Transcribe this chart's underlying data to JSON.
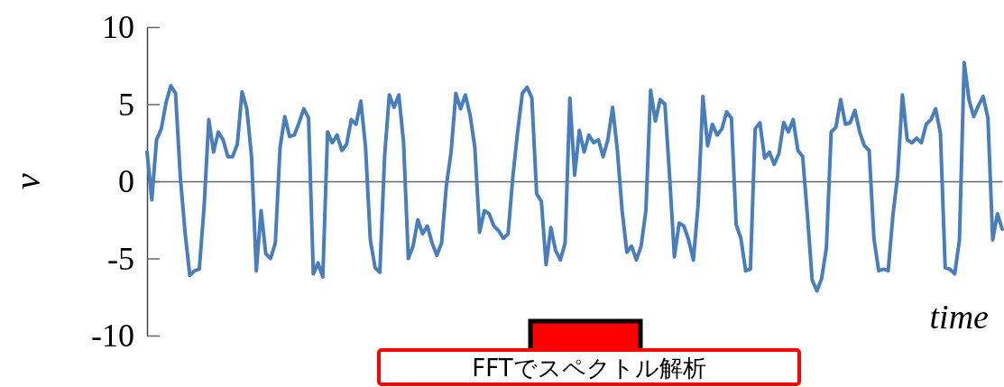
{
  "chart_data": {
    "type": "line",
    "xlabel": "time",
    "ylabel": "v",
    "color": "#4a7ebb",
    "ylim": [
      -10,
      10
    ],
    "yticks": [
      -10,
      -5,
      0,
      5,
      10
    ],
    "annotations": [
      "FFTでスペクトル解析"
    ],
    "categories": [
      null,
      null,
      null,
      null,
      null,
      null,
      null,
      null,
      null,
      null,
      null,
      null,
      null,
      null,
      null,
      null,
      null,
      null,
      null,
      null,
      null,
      null,
      null,
      null,
      null,
      null,
      null,
      null,
      null,
      null,
      null,
      null,
      null,
      null,
      null,
      null,
      null,
      null,
      null,
      null,
      null,
      null,
      null,
      null,
      null,
      null,
      null,
      null,
      null,
      null,
      null,
      null,
      null,
      null,
      null,
      null,
      null,
      null,
      null,
      null,
      null,
      null,
      null,
      null,
      null,
      null,
      null,
      null,
      null,
      null,
      null,
      null,
      null,
      null,
      null,
      null,
      null,
      null,
      null,
      null,
      null,
      null,
      null,
      null,
      null,
      null,
      null,
      null,
      null,
      null,
      null,
      null,
      null,
      null,
      null,
      null,
      null,
      null,
      null,
      null,
      null,
      null,
      null,
      null,
      null,
      null,
      null,
      null,
      null,
      null,
      null,
      null,
      null,
      null,
      null,
      null,
      null,
      null,
      null,
      null,
      null,
      null,
      null,
      null,
      null,
      null,
      null,
      null,
      null,
      null,
      null,
      null,
      null,
      null,
      null,
      null,
      null,
      null,
      null,
      null,
      null,
      null,
      null,
      null,
      null,
      null,
      null,
      null,
      null,
      null,
      null,
      null,
      null,
      null,
      null,
      null,
      null,
      null,
      null,
      null,
      null,
      null,
      null,
      null,
      null,
      null,
      null,
      null,
      null,
      null,
      null,
      null,
      null,
      null,
      null,
      null,
      null,
      null,
      null,
      null,
      null
    ],
    "values": [
      1.9,
      -1.2,
      2.7,
      3.4,
      5.1,
      6.2,
      5.7,
      0.3,
      -3.3,
      -6.1,
      -5.8,
      -5.7,
      -1.7,
      4.0,
      1.9,
      3.2,
      2.7,
      1.6,
      1.6,
      2.4,
      5.8,
      4.7,
      1.6,
      -5.8,
      -1.9,
      -4.7,
      -5.0,
      -4.0,
      2.2,
      4.2,
      2.9,
      3.0,
      3.8,
      4.7,
      4.1,
      -6.0,
      -5.3,
      -6.2,
      3.2,
      2.5,
      3.0,
      2.0,
      2.4,
      4.0,
      3.7,
      5.2,
      2.2,
      -3.8,
      -5.6,
      -5.9,
      1.6,
      5.6,
      4.8,
      5.6,
      2.5,
      -5.0,
      -4.2,
      -2.5,
      -3.4,
      -2.9,
      -4.0,
      -4.8,
      -4.0,
      -0.3,
      1.9,
      5.7,
      4.7,
      5.6,
      4.3,
      2.2,
      -3.3,
      -1.9,
      -2.1,
      -2.9,
      -3.2,
      -3.7,
      -3.4,
      0.3,
      3.2,
      5.7,
      6.1,
      5.4,
      -0.8,
      -1.3,
      -5.4,
      -3.0,
      -4.5,
      -5.1,
      -4.0,
      5.4,
      0.4,
      3.3,
      1.9,
      3.0,
      2.5,
      2.7,
      1.6,
      2.7,
      4.8,
      2.0,
      -1.9,
      -4.6,
      -4.2,
      -5.1,
      -4.2,
      -1.9,
      5.9,
      3.9,
      5.3,
      5.0,
      0.3,
      -4.9,
      -2.7,
      -2.9,
      -3.8,
      -5.1,
      -1.5,
      5.5,
      2.3,
      3.7,
      3.0,
      3.4,
      4.5,
      4.1,
      -2.8,
      -3.7,
      -5.8,
      -5.7,
      3.4,
      3.8,
      1.5,
      1.9,
      1.1,
      1.8,
      3.8,
      3.2,
      4.0,
      2.0,
      1.6,
      -2.2,
      -6.4,
      -7.1,
      -6.3,
      -4.3,
      3.2,
      3.5,
      5.3,
      3.7,
      3.8,
      4.6,
      3.2,
      2.3,
      2.0,
      -3.7,
      -5.8,
      -5.7,
      -5.8,
      -2.2,
      0.4,
      5.6,
      2.7,
      2.5,
      2.8,
      2.5,
      3.7,
      4.0,
      4.7,
      3.1,
      -5.6,
      -5.7,
      -6.0,
      -3.8,
      7.7,
      5.3,
      4.2,
      4.9,
      5.5,
      4.1,
      -3.8,
      -2.1,
      -3.1
    ]
  }
}
